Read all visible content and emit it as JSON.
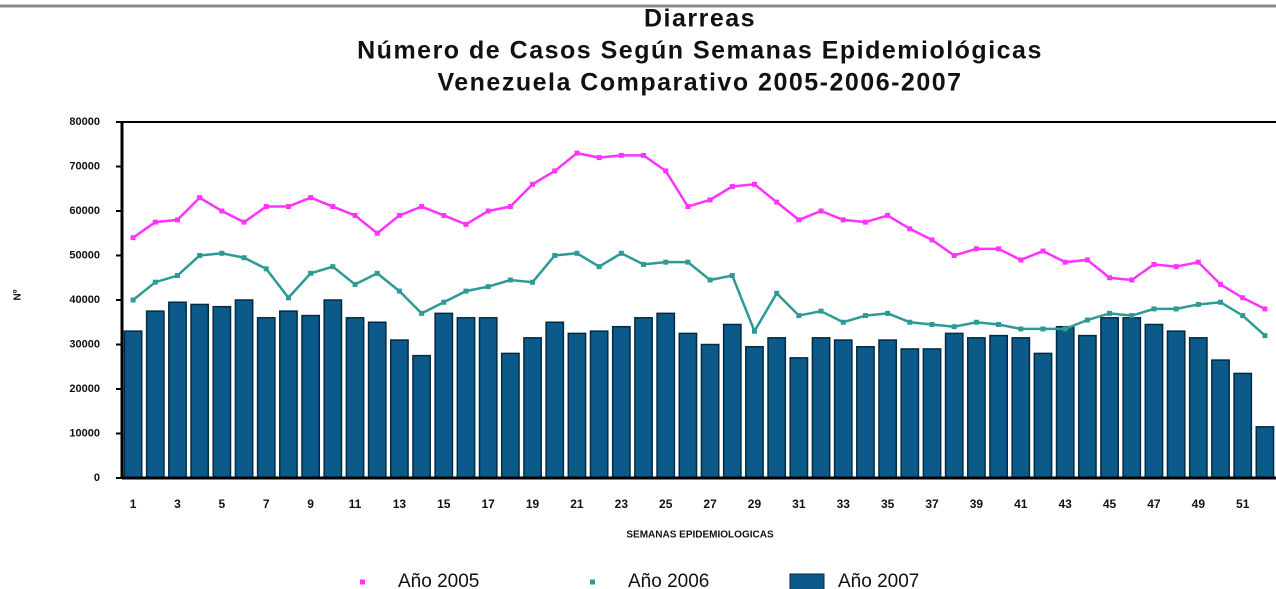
{
  "chart_data": {
    "type": "combo",
    "title_lines": [
      "Diarreas",
      "Número de Casos Según Semanas Epidemiológicas",
      "Venezuela Comparativo 2005-2006-2007"
    ],
    "y_label": "Nº",
    "x_label": "SEMANAS EPIDEMIOLOGICAS",
    "categories": [
      "1",
      null,
      "3",
      null,
      "5",
      null,
      "7",
      null,
      "9",
      null,
      "11",
      null,
      "13",
      null,
      "15",
      null,
      "17",
      null,
      "19",
      null,
      "21",
      null,
      "23",
      null,
      "25",
      null,
      "27",
      null,
      "29",
      null,
      "31",
      null,
      "33",
      null,
      "35",
      null,
      "37",
      null,
      "39",
      null,
      "41",
      null,
      "43",
      null,
      "45",
      null,
      "47",
      null,
      "49",
      null,
      "51",
      null
    ],
    "series": [
      {
        "name": "Año 2005",
        "kind": "line",
        "color": "#ff33ff",
        "values": [
          54000,
          57500,
          58000,
          63000,
          60000,
          57500,
          61000,
          61000,
          63000,
          61000,
          59000,
          55000,
          59000,
          61000,
          59000,
          57000,
          60000,
          61000,
          66000,
          69000,
          73000,
          72000,
          72500,
          72500,
          69000,
          61000,
          62500,
          65500,
          66000,
          62000,
          58000,
          60000,
          58000,
          57500,
          59000,
          56000,
          53500,
          50000,
          51500,
          51500,
          49000,
          51000,
          48500,
          49000,
          45000,
          44500,
          48000,
          47500,
          48500,
          43500,
          40500,
          38000
        ]
      },
      {
        "name": "Año 2006",
        "kind": "line",
        "color": "#2e9a96",
        "values": [
          40000,
          44000,
          45500,
          50000,
          50500,
          49500,
          47000,
          40500,
          46000,
          47500,
          43500,
          46000,
          42000,
          37000,
          39500,
          42000,
          43000,
          44500,
          44000,
          50000,
          50500,
          47500,
          50500,
          48000,
          48500,
          48500,
          44500,
          45500,
          33000,
          41500,
          36500,
          37500,
          35000,
          36500,
          37000,
          35000,
          34500,
          34000,
          35000,
          34500,
          33500,
          33500,
          33500,
          35500,
          37000,
          36500,
          38000,
          38000,
          39000,
          39500,
          36500,
          32000
        ]
      },
      {
        "name": "Año 2007",
        "kind": "bar",
        "color": "#0b5a8a",
        "values": [
          33000,
          37500,
          39500,
          39000,
          38500,
          40000,
          36000,
          37500,
          36500,
          40000,
          36000,
          35000,
          31000,
          27500,
          37000,
          36000,
          36000,
          28000,
          31500,
          35000,
          32500,
          33000,
          34000,
          36000,
          37000,
          32500,
          30000,
          34500,
          29500,
          31500,
          27000,
          31500,
          31000,
          29500,
          31000,
          29000,
          29000,
          32500,
          31500,
          32000,
          31500,
          28000,
          34000,
          32000,
          36000,
          36000,
          34500,
          33000,
          31500,
          26500,
          23500,
          11500
        ]
      }
    ],
    "ylim": [
      0,
      80000
    ],
    "yticks": [
      0,
      10000,
      20000,
      30000,
      40000,
      50000,
      60000,
      70000,
      80000
    ]
  }
}
